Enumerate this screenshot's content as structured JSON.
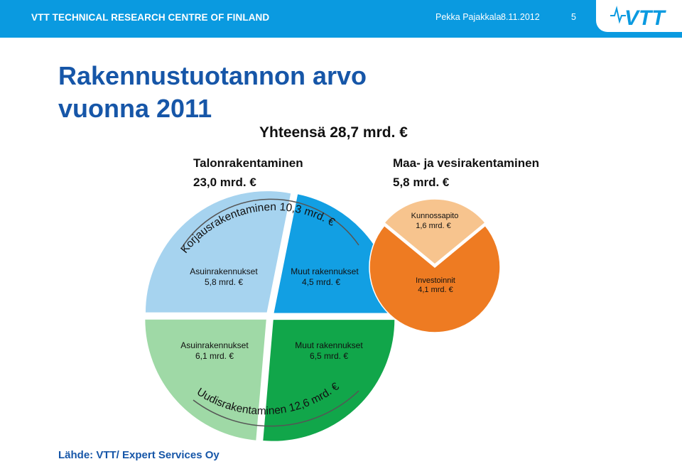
{
  "header": {
    "org": "VTT TECHNICAL RESEARCH CENTRE OF FINLAND",
    "author": "Pekka Pajakkala",
    "date": "8.11.2012",
    "page": "5",
    "logo": "VTT",
    "background": "#0a9ae0"
  },
  "slide": {
    "title": "Rakennustuotannon arvo\nvuonna 2011",
    "source": "Lähde: VTT/ Expert Services Oy"
  },
  "chart_data": {
    "type": "pie",
    "title": "Yhteensä 28,7 mrd. €",
    "unit": "mrd. €",
    "groups": [
      {
        "name": "Talonrakentaminen",
        "total_label": "23,0 mrd. €",
        "total": 23.0,
        "subgroups": [
          {
            "name": "Korjausrakentaminen",
            "label": "Korjausrakentaminen 10,3 mrd. €",
            "value": 10.3
          },
          {
            "name": "Uudisrakentaminen",
            "label": "Uudisrakentaminen 12,6 mrd. €",
            "value": 12.6
          }
        ],
        "slices": [
          {
            "name": "Asuinrakennukset",
            "value_label": "5,8 mrd. €",
            "value": 5.8,
            "subgroup": "Korjausrakentaminen",
            "color": "#a6d3ef"
          },
          {
            "name": "Muut rakennukset",
            "value_label": "4,5 mrd. €",
            "value": 4.5,
            "subgroup": "Korjausrakentaminen",
            "color": "#129fe3"
          },
          {
            "name": "Muut rakennukset",
            "value_label": "6,5 mrd. €",
            "value": 6.5,
            "subgroup": "Uudisrakentaminen",
            "color": "#11a64a"
          },
          {
            "name": "Asuinrakennukset",
            "value_label": "6,1 mrd. €",
            "value": 6.1,
            "subgroup": "Uudisrakentaminen",
            "color": "#9fd9a6"
          }
        ]
      },
      {
        "name": "Maa- ja vesirakentaminen",
        "total_label": "5,8 mrd. €",
        "total": 5.8,
        "slices": [
          {
            "name": "Kunnossapito",
            "value_label": "1,6 mrd. €",
            "value": 1.6,
            "color": "#f7c48e"
          },
          {
            "name": "Investoinnit",
            "value_label": "4,1 mrd. €",
            "value": 4.1,
            "color": "#ee7b22"
          }
        ]
      }
    ]
  }
}
